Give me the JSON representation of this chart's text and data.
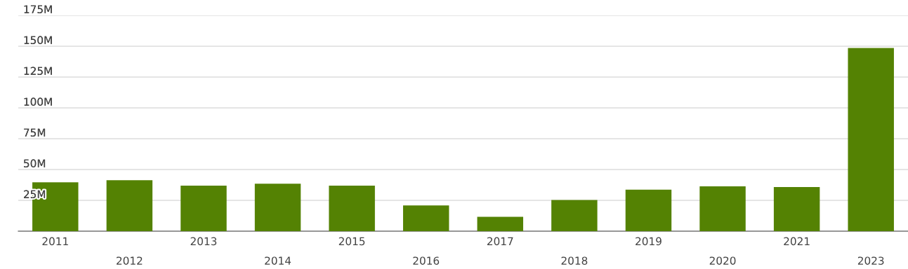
{
  "chart_data": {
    "type": "bar",
    "categories": [
      "2011",
      "2012",
      "2013",
      "2014",
      "2015",
      "2016",
      "2017",
      "2018",
      "2019",
      "2020",
      "2021",
      "2023"
    ],
    "values": [
      39.6,
      41.3,
      36.9,
      38.5,
      36.9,
      20.9,
      11.6,
      25.3,
      33.6,
      36.3,
      35.8,
      148.6
    ],
    "color": "#548203",
    "ylim": [
      0,
      175
    ],
    "yticks": [
      {
        "value": 25,
        "label": "25M"
      },
      {
        "value": 50,
        "label": "50M"
      },
      {
        "value": 75,
        "label": "75M"
      },
      {
        "value": 100,
        "label": "100M"
      },
      {
        "value": 125,
        "label": "125M"
      },
      {
        "value": 150,
        "label": "150M"
      },
      {
        "value": 175,
        "label": "175M"
      }
    ],
    "grid": "y"
  }
}
